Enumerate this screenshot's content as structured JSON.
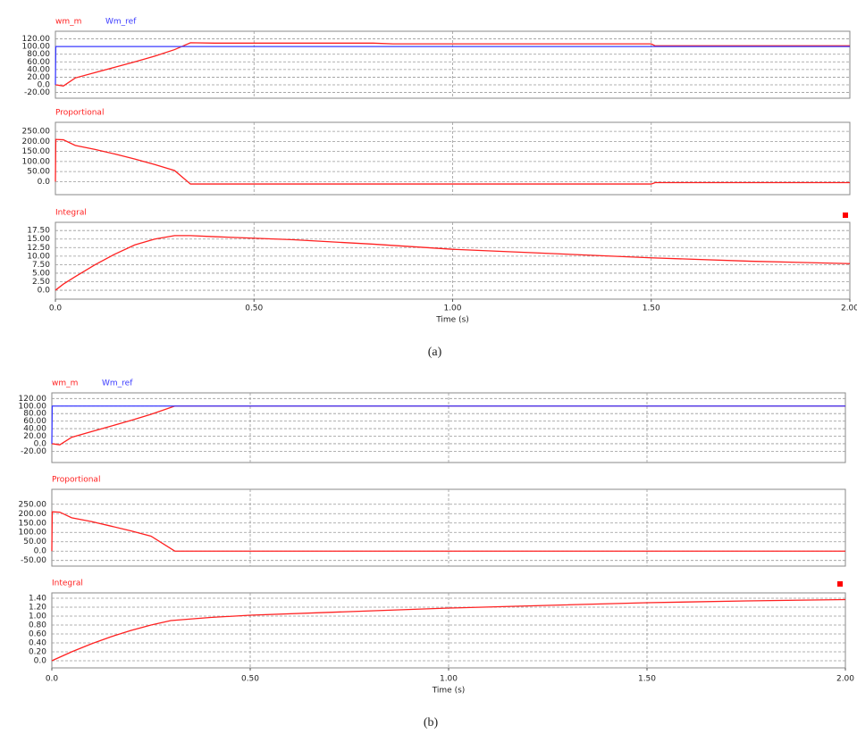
{
  "chart_data": [
    {
      "type": "line",
      "caption": "(a)",
      "xlabel": "Time (s)",
      "xlim": [
        0,
        2
      ],
      "xticks": [
        {
          "value": 0,
          "label": "0.0"
        },
        {
          "value": 0.5,
          "label": "0.50"
        },
        {
          "value": 1,
          "label": "1.00"
        },
        {
          "value": 1.5,
          "label": "1.50"
        },
        {
          "value": 2,
          "label": "2.00"
        }
      ],
      "panels": [
        {
          "x": [
            0,
            0.001,
            0.02,
            0.05,
            0.1,
            0.15,
            0.2,
            0.25,
            0.3,
            0.34,
            0.4,
            0.6,
            0.8,
            0.85,
            1.0,
            1.5,
            1.51,
            2.0
          ],
          "ylim": [
            -35,
            140
          ],
          "yticks": [
            {
              "value": 120,
              "label": "120.00"
            },
            {
              "value": 100,
              "label": "100.00"
            },
            {
              "value": 80,
              "label": "80.00"
            },
            {
              "value": 60,
              "label": "60.00"
            },
            {
              "value": 40,
              "label": "40.00"
            },
            {
              "value": 20,
              "label": "20.00"
            },
            {
              "value": 0,
              "label": "0.0"
            },
            {
              "value": -20,
              "label": "-20.00"
            }
          ],
          "grid": true,
          "series": [
            {
              "name": "wm_m",
              "color": "#ff2020",
              "values": [
                0,
                0,
                -3,
                18,
                32,
                46,
                60,
                75,
                92,
                110,
                109,
                109,
                109,
                107,
                107,
                107,
                102,
                102
              ]
            },
            {
              "name": "Wm_ref",
              "color": "#3a3aff",
              "values": [
                0,
                100,
                100,
                100,
                100,
                100,
                100,
                100,
                100,
                100,
                100,
                100,
                100,
                100,
                100,
                100,
                100,
                100
              ]
            }
          ]
        },
        {
          "x": [
            0,
            0.001,
            0.02,
            0.05,
            0.1,
            0.15,
            0.2,
            0.25,
            0.3,
            0.34,
            0.4,
            1.0,
            1.5,
            1.51,
            2.0
          ],
          "ylim": [
            -65,
            295
          ],
          "yticks": [
            {
              "value": 250,
              "label": "250.00"
            },
            {
              "value": 200,
              "label": "200.00"
            },
            {
              "value": 150,
              "label": "150.00"
            },
            {
              "value": 100,
              "label": "100.00"
            },
            {
              "value": 50,
              "label": "50.00"
            },
            {
              "value": 0,
              "label": "0.0"
            }
          ],
          "grid": true,
          "series": [
            {
              "name": "Proportional",
              "color": "#ff2020",
              "values": [
                0,
                210,
                208,
                180,
                160,
                137,
                112,
                85,
                55,
                -12,
                -12,
                -12,
                -12,
                -5,
                -5
              ]
            }
          ]
        },
        {
          "x": [
            0,
            0.02,
            0.05,
            0.1,
            0.15,
            0.2,
            0.25,
            0.3,
            0.34,
            0.4,
            0.6,
            0.8,
            1.0,
            1.2,
            1.5,
            1.75,
            2.0
          ],
          "ylim": [
            -2.6,
            19.9
          ],
          "yticks": [
            {
              "value": 17.5,
              "label": "17.50"
            },
            {
              "value": 15,
              "label": "15.00"
            },
            {
              "value": 12.5,
              "label": "12.50"
            },
            {
              "value": 10,
              "label": "10.00"
            },
            {
              "value": 7.5,
              "label": "7.50"
            },
            {
              "value": 5,
              "label": "5.00"
            },
            {
              "value": 2.5,
              "label": "2.50"
            },
            {
              "value": 0,
              "label": "0.0"
            }
          ],
          "grid": true,
          "series": [
            {
              "name": "Integral",
              "color": "#ff2020",
              "values": [
                0,
                1.8,
                4,
                7.5,
                10.6,
                13.3,
                15,
                16,
                16,
                15.7,
                14.8,
                13.5,
                12,
                11,
                9.5,
                8.5,
                7.8
              ]
            }
          ]
        }
      ]
    },
    {
      "type": "line",
      "caption": "(b)",
      "xlabel": "Time (s)",
      "xlim": [
        0,
        2
      ],
      "xticks": [
        {
          "value": 0,
          "label": "0.0"
        },
        {
          "value": 0.5,
          "label": "0.50"
        },
        {
          "value": 1,
          "label": "1.00"
        },
        {
          "value": 1.5,
          "label": "1.50"
        },
        {
          "value": 2,
          "label": "2.00"
        }
      ],
      "panels": [
        {
          "x": [
            0,
            0.001,
            0.02,
            0.05,
            0.1,
            0.15,
            0.2,
            0.25,
            0.31,
            0.5,
            1.0,
            1.5,
            2.0
          ],
          "ylim": [
            -50,
            135
          ],
          "yticks": [
            {
              "value": 120,
              "label": "120.00"
            },
            {
              "value": 100,
              "label": "100.00"
            },
            {
              "value": 80,
              "label": "80.00"
            },
            {
              "value": 60,
              "label": "60.00"
            },
            {
              "value": 40,
              "label": "40.00"
            },
            {
              "value": 20,
              "label": "20.00"
            },
            {
              "value": 0,
              "label": "0.0"
            },
            {
              "value": -20,
              "label": "-20.00"
            }
          ],
          "grid": true,
          "series": [
            {
              "name": "wm_m",
              "color": "#ff2020",
              "values": [
                0,
                0,
                -3,
                17,
                32,
                47,
                62,
                78,
                100,
                100,
                100,
                100,
                100
              ]
            },
            {
              "name": "Wm_ref",
              "color": "#3a3aff",
              "values": [
                0,
                100,
                100,
                100,
                100,
                100,
                100,
                100,
                100,
                100,
                100,
                100,
                100
              ]
            }
          ]
        },
        {
          "x": [
            0,
            0.001,
            0.02,
            0.05,
            0.1,
            0.15,
            0.2,
            0.25,
            0.31,
            2.0
          ],
          "ylim": [
            -80,
            330
          ],
          "yticks": [
            {
              "value": 250,
              "label": "250.00"
            },
            {
              "value": 200,
              "label": "200.00"
            },
            {
              "value": 150,
              "label": "150.00"
            },
            {
              "value": 100,
              "label": "100.00"
            },
            {
              "value": 50,
              "label": "50.00"
            },
            {
              "value": 0,
              "label": "0.0"
            },
            {
              "value": -50,
              "label": "-50.00"
            }
          ],
          "grid": true,
          "series": [
            {
              "name": "Proportional",
              "color": "#ff2020",
              "values": [
                0,
                210,
                208,
                178,
                158,
                133,
                108,
                80,
                0,
                0
              ]
            }
          ]
        },
        {
          "x": [
            0,
            0.05,
            0.1,
            0.15,
            0.2,
            0.25,
            0.3,
            0.4,
            0.5,
            0.75,
            1.0,
            1.25,
            1.5,
            1.75,
            2.0
          ],
          "ylim": [
            -0.16,
            1.52
          ],
          "yticks": [
            {
              "value": 1.4,
              "label": "1.40"
            },
            {
              "value": 1.2,
              "label": "1.20"
            },
            {
              "value": 1,
              "label": "1.00"
            },
            {
              "value": 0.8,
              "label": "0.80"
            },
            {
              "value": 0.6,
              "label": "0.60"
            },
            {
              "value": 0.4,
              "label": "0.40"
            },
            {
              "value": 0.2,
              "label": "0.20"
            },
            {
              "value": 0,
              "label": "0.0"
            }
          ],
          "grid": true,
          "series": [
            {
              "name": "Integral",
              "color": "#ff2020",
              "values": [
                0,
                0.2,
                0.38,
                0.54,
                0.68,
                0.8,
                0.9,
                0.97,
                1.02,
                1.1,
                1.18,
                1.24,
                1.3,
                1.34,
                1.37
              ]
            }
          ]
        }
      ]
    }
  ]
}
